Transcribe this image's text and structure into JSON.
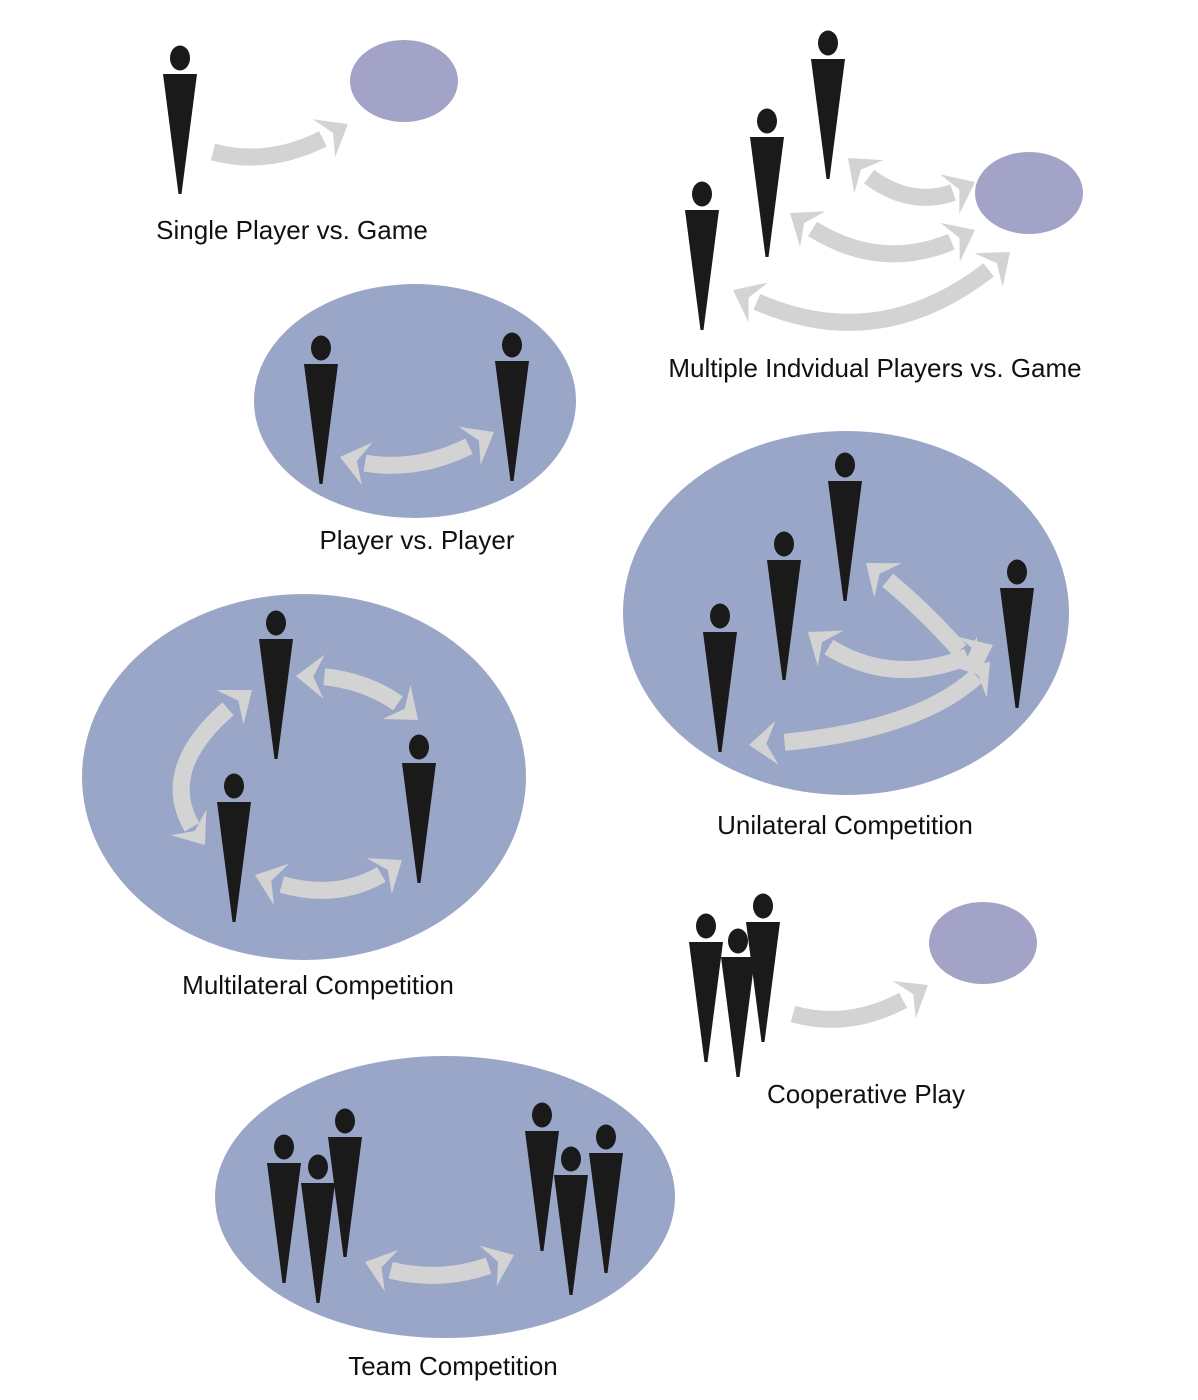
{
  "colors": {
    "arena": "#9aa6c8",
    "game_object": "#a2a3c6",
    "figure": "#1a1a1a",
    "arrow": "#d3d3d3"
  },
  "panels": {
    "single_player": {
      "label": "Single Player vs. Game"
    },
    "multi_individual": {
      "label": "Multiple Indvidual Players vs. Game"
    },
    "player_vs_player": {
      "label": "Player vs. Player"
    },
    "unilateral": {
      "label": "Unilateral Competition"
    },
    "multilateral": {
      "label": "Multilateral Competition"
    },
    "cooperative": {
      "label": "Cooperative Play"
    },
    "team": {
      "label": "Team Competition"
    }
  }
}
